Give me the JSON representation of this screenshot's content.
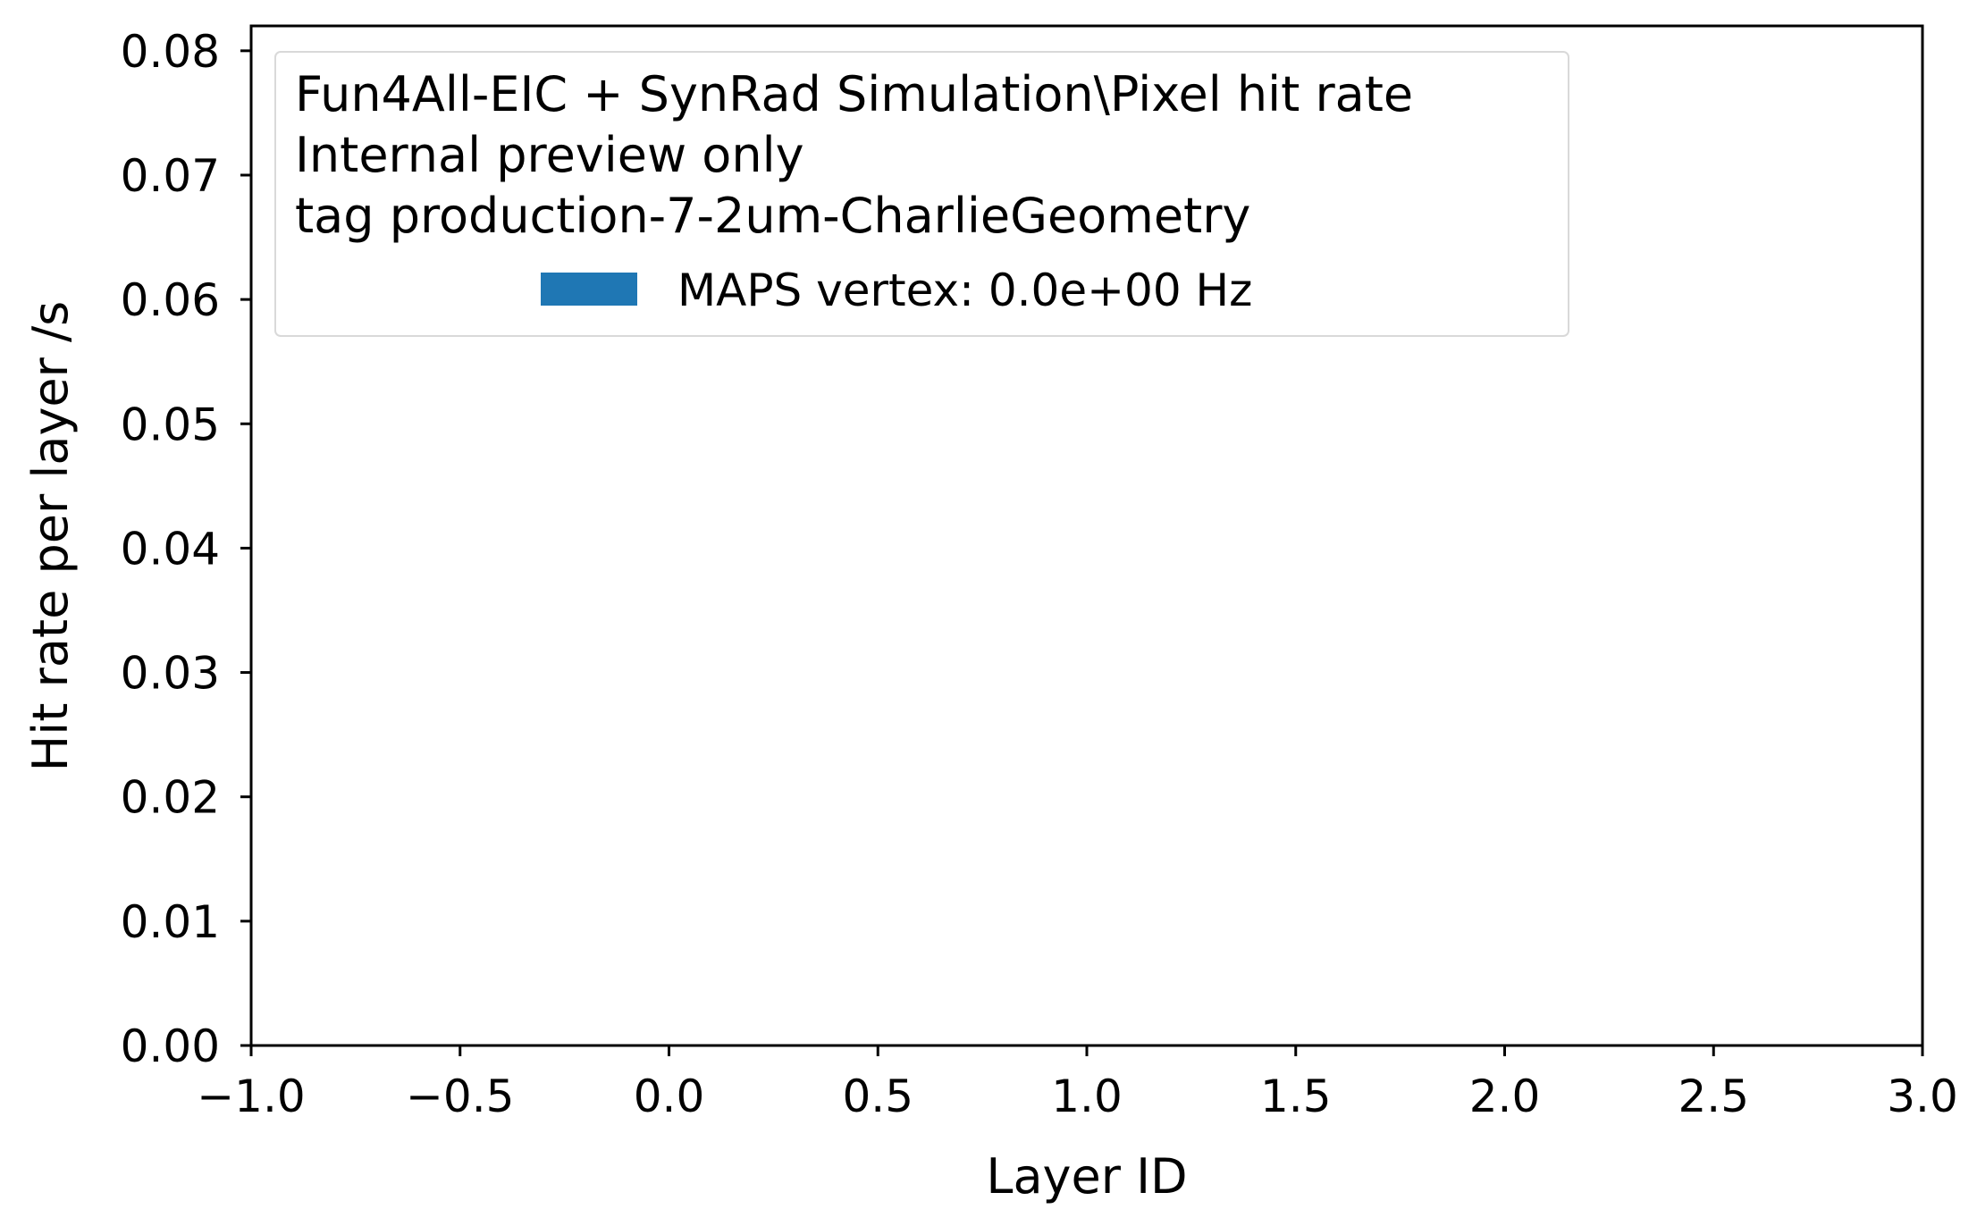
{
  "chart_data": {
    "type": "bar",
    "xlabel": "Layer ID",
    "ylabel": "Hit rate per layer /s",
    "xlim": [
      -1.0,
      3.0
    ],
    "ylim": [
      0.0,
      0.082
    ],
    "x_ticks": [
      -1.0,
      -0.5,
      0.0,
      0.5,
      1.0,
      1.5,
      2.0,
      2.5,
      3.0
    ],
    "x_tick_labels": [
      "−1.0",
      "−0.5",
      "0.0",
      "0.5",
      "1.0",
      "1.5",
      "2.0",
      "2.5",
      "3.0"
    ],
    "y_ticks": [
      0.0,
      0.01,
      0.02,
      0.03,
      0.04,
      0.05,
      0.06,
      0.07,
      0.08
    ],
    "y_tick_labels": [
      "0.00",
      "0.01",
      "0.02",
      "0.03",
      "0.04",
      "0.05",
      "0.06",
      "0.07",
      "0.08"
    ],
    "legend": {
      "placement": "top-left",
      "title_lines": [
        "Fun4All-EIC + SynRad Simulation\\Pixel hit rate",
        "Internal preview only",
        "tag production-7-2um-CharlieGeometry"
      ],
      "entries": [
        {
          "label": "MAPS vertex: 0.0e+00 Hz",
          "color": "#1f77b4"
        }
      ]
    },
    "series": [
      {
        "name": "MAPS vertex: 0.0e+00 Hz",
        "color": "#1f77b4",
        "x": [],
        "values": []
      }
    ],
    "grid": false
  }
}
